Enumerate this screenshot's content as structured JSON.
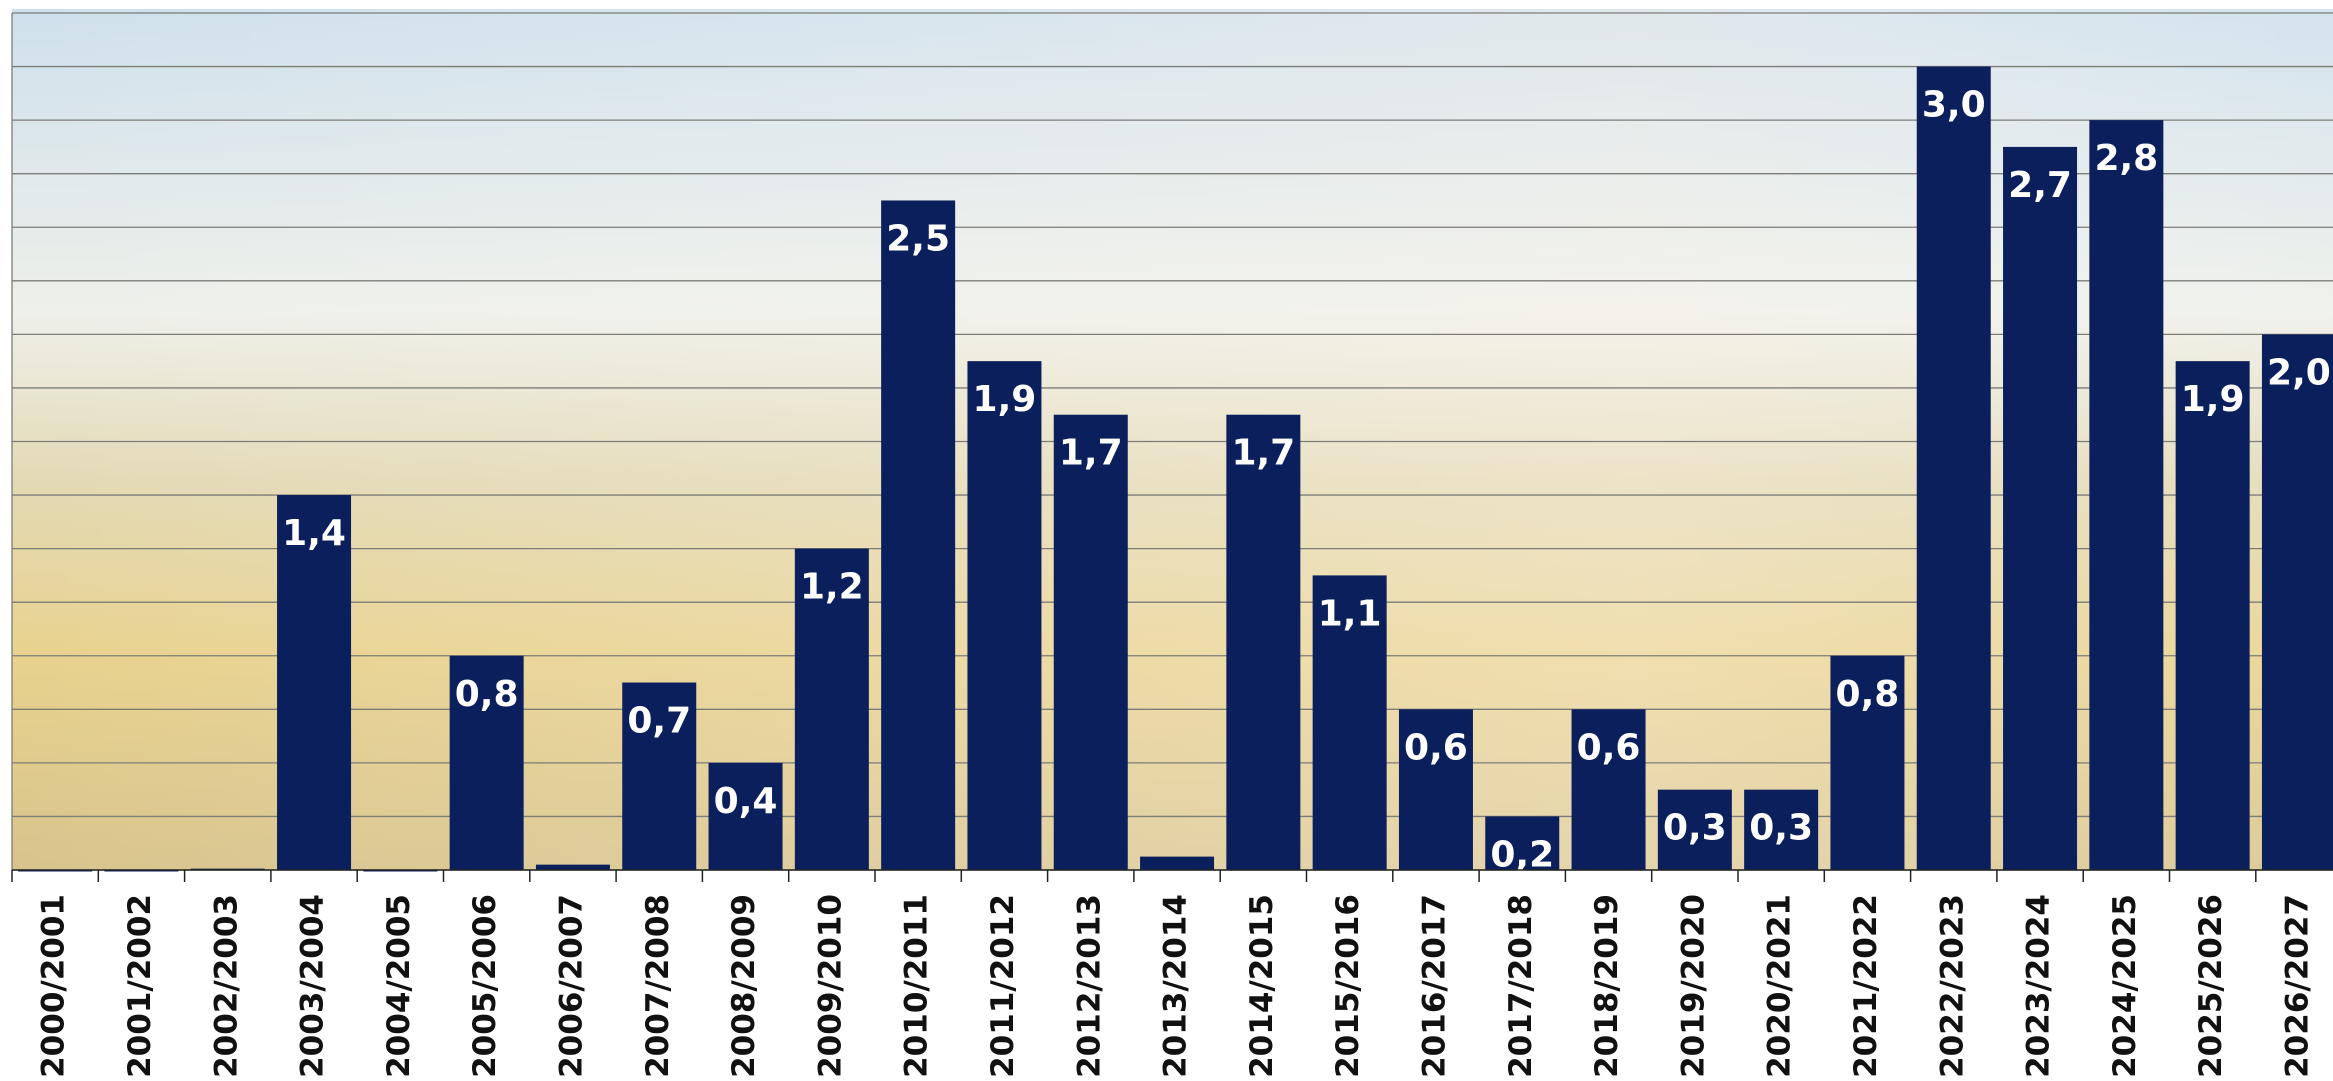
{
  "chart_data": {
    "type": "bar",
    "categories": [
      "2000/2001",
      "2001/2002",
      "2002/2003",
      "2003/2004",
      "2004/2005",
      "2005/2006",
      "2006/2007",
      "2007/2008",
      "2008/2009",
      "2009/2010",
      "2010/2011",
      "2011/2012",
      "2012/2013",
      "2013/2014",
      "2014/2015",
      "2015/2016",
      "2016/2017",
      "2017/2018",
      "2018/2019",
      "2019/2020",
      "2020/2021",
      "2021/2022",
      "2022/2023",
      "2023/2024",
      "2024/2025",
      "2025/2026",
      "2026/2027"
    ],
    "values": [
      0,
      0,
      0.005,
      1.4,
      0,
      0.8,
      0.02,
      0.7,
      0.4,
      1.2,
      2.5,
      1.9,
      1.7,
      0.05,
      1.7,
      1.1,
      0.6,
      0.2,
      0.6,
      0.3,
      0.3,
      0.8,
      3.0,
      2.7,
      2.8,
      1.9,
      2.0
    ],
    "value_labels": [
      null,
      null,
      null,
      "1,4",
      null,
      "0,8",
      null,
      "0,7",
      "0,4",
      "1,2",
      "2,5",
      "1,9",
      "1,7",
      null,
      "1,7",
      "1,1",
      "0,6",
      "0,2",
      "0,6",
      "0,3",
      "0,3",
      "0,8",
      "3,0",
      "2,7",
      "2,8",
      "1,9",
      "2,0"
    ],
    "color": "#0b1f5c",
    "ylim": [
      0,
      3.2
    ],
    "yticks": [
      0,
      0.2,
      0.4,
      0.6,
      0.8,
      1.0,
      1.2,
      1.4,
      1.6,
      1.8,
      2.0,
      2.2,
      2.4,
      2.6,
      2.8,
      3.0,
      3.2
    ],
    "grid": true
  }
}
